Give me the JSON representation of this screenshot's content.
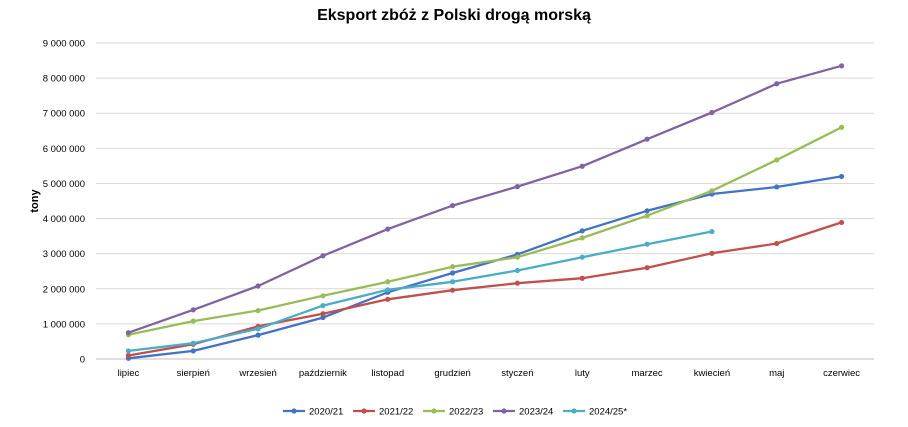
{
  "chart_data": {
    "type": "line",
    "title": "Eksport zbóż z Polski drogą morską",
    "xlabel": "",
    "ylabel": "tony",
    "ylim": [
      0,
      9000000
    ],
    "yticks": [
      0,
      1000000,
      2000000,
      3000000,
      4000000,
      5000000,
      6000000,
      7000000,
      8000000,
      9000000
    ],
    "ytick_labels": [
      "0",
      "1 000 000",
      "2 000 000",
      "3 000 000",
      "4 000 000",
      "5 000 000",
      "6 000 000",
      "7 000 000",
      "8 000 000",
      "9 000 000"
    ],
    "grid": true,
    "legend_position": "bottom",
    "categories": [
      "lipiec",
      "sierpień",
      "wrzesień",
      "październik",
      "listopad",
      "grudzień",
      "styczeń",
      "luty",
      "marzec",
      "kwiecień",
      "maj",
      "czerwiec"
    ],
    "series": [
      {
        "name": "2020/21",
        "color": "#4472c4",
        "values": [
          20000,
          230000,
          680000,
          1180000,
          1900000,
          2450000,
          2980000,
          3650000,
          4220000,
          4700000,
          4900000,
          5200000
        ]
      },
      {
        "name": "2021/22",
        "color": "#c0504d",
        "values": [
          100000,
          420000,
          930000,
          1290000,
          1700000,
          1960000,
          2160000,
          2300000,
          2600000,
          3010000,
          3290000,
          3890000
        ]
      },
      {
        "name": "2022/23",
        "color": "#9bbb59",
        "values": [
          690000,
          1080000,
          1380000,
          1800000,
          2200000,
          2630000,
          2900000,
          3450000,
          4080000,
          4790000,
          5670000,
          6600000
        ]
      },
      {
        "name": "2023/24",
        "color": "#8064a2",
        "values": [
          750000,
          1400000,
          2080000,
          2940000,
          3700000,
          4370000,
          4910000,
          5490000,
          6260000,
          7020000,
          7840000,
          8350000
        ]
      },
      {
        "name": "2024/25*",
        "color": "#4bacc6",
        "values": [
          230000,
          450000,
          860000,
          1520000,
          1970000,
          2200000,
          2520000,
          2900000,
          3270000,
          3630000,
          null,
          null
        ]
      }
    ]
  }
}
